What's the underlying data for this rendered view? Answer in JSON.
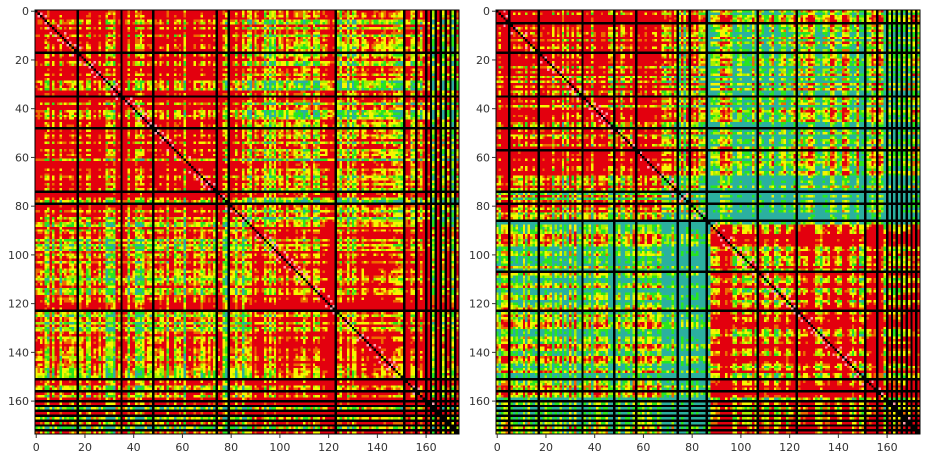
{
  "chart_data": [
    {
      "type": "heatmap",
      "title": "",
      "xlabel": "",
      "ylabel": "",
      "size": 174,
      "xlim": [
        0,
        174
      ],
      "ylim": [
        174,
        0
      ],
      "xticks": [
        "0",
        "20",
        "40",
        "60",
        "80",
        "100",
        "120",
        "140",
        "160"
      ],
      "yticks": [
        "0",
        "20",
        "40",
        "60",
        "80",
        "100",
        "120",
        "140",
        "160"
      ],
      "tick_values": [
        0,
        20,
        40,
        60,
        80,
        100,
        120,
        140,
        160
      ],
      "black_lines": [
        17,
        35,
        48,
        74,
        79,
        123,
        151,
        156,
        160,
        162,
        164,
        166,
        168,
        170,
        172
      ],
      "block_split": 87,
      "grid": false,
      "legend": "none"
    },
    {
      "type": "heatmap",
      "title": "",
      "xlabel": "",
      "ylabel": "",
      "size": 174,
      "xlim": [
        0,
        174
      ],
      "ylim": [
        174,
        0
      ],
      "xticks": [
        "0",
        "20",
        "40",
        "60",
        "80",
        "100",
        "120",
        "140",
        "160"
      ],
      "yticks": [
        "0",
        "20",
        "40",
        "60",
        "80",
        "100",
        "120",
        "140",
        "160"
      ],
      "tick_values": [
        0,
        20,
        40,
        60,
        80,
        100,
        120,
        140,
        160
      ],
      "black_lines": [
        5,
        17,
        35,
        48,
        57,
        74,
        79,
        86,
        107,
        123,
        151,
        156,
        160,
        162,
        164,
        166,
        168,
        170,
        172
      ],
      "block_split": 87,
      "grid": false,
      "legend": "none"
    }
  ],
  "colors": {
    "red": "#e3000e",
    "orange": "#ee6a00",
    "yellow": "#f6f500",
    "yellow_green": "#a6f000",
    "green": "#28e61e",
    "teal": "#2bb0a0",
    "pink": "#ff9fb0",
    "black": "#000000",
    "tick_text": "#333333"
  }
}
